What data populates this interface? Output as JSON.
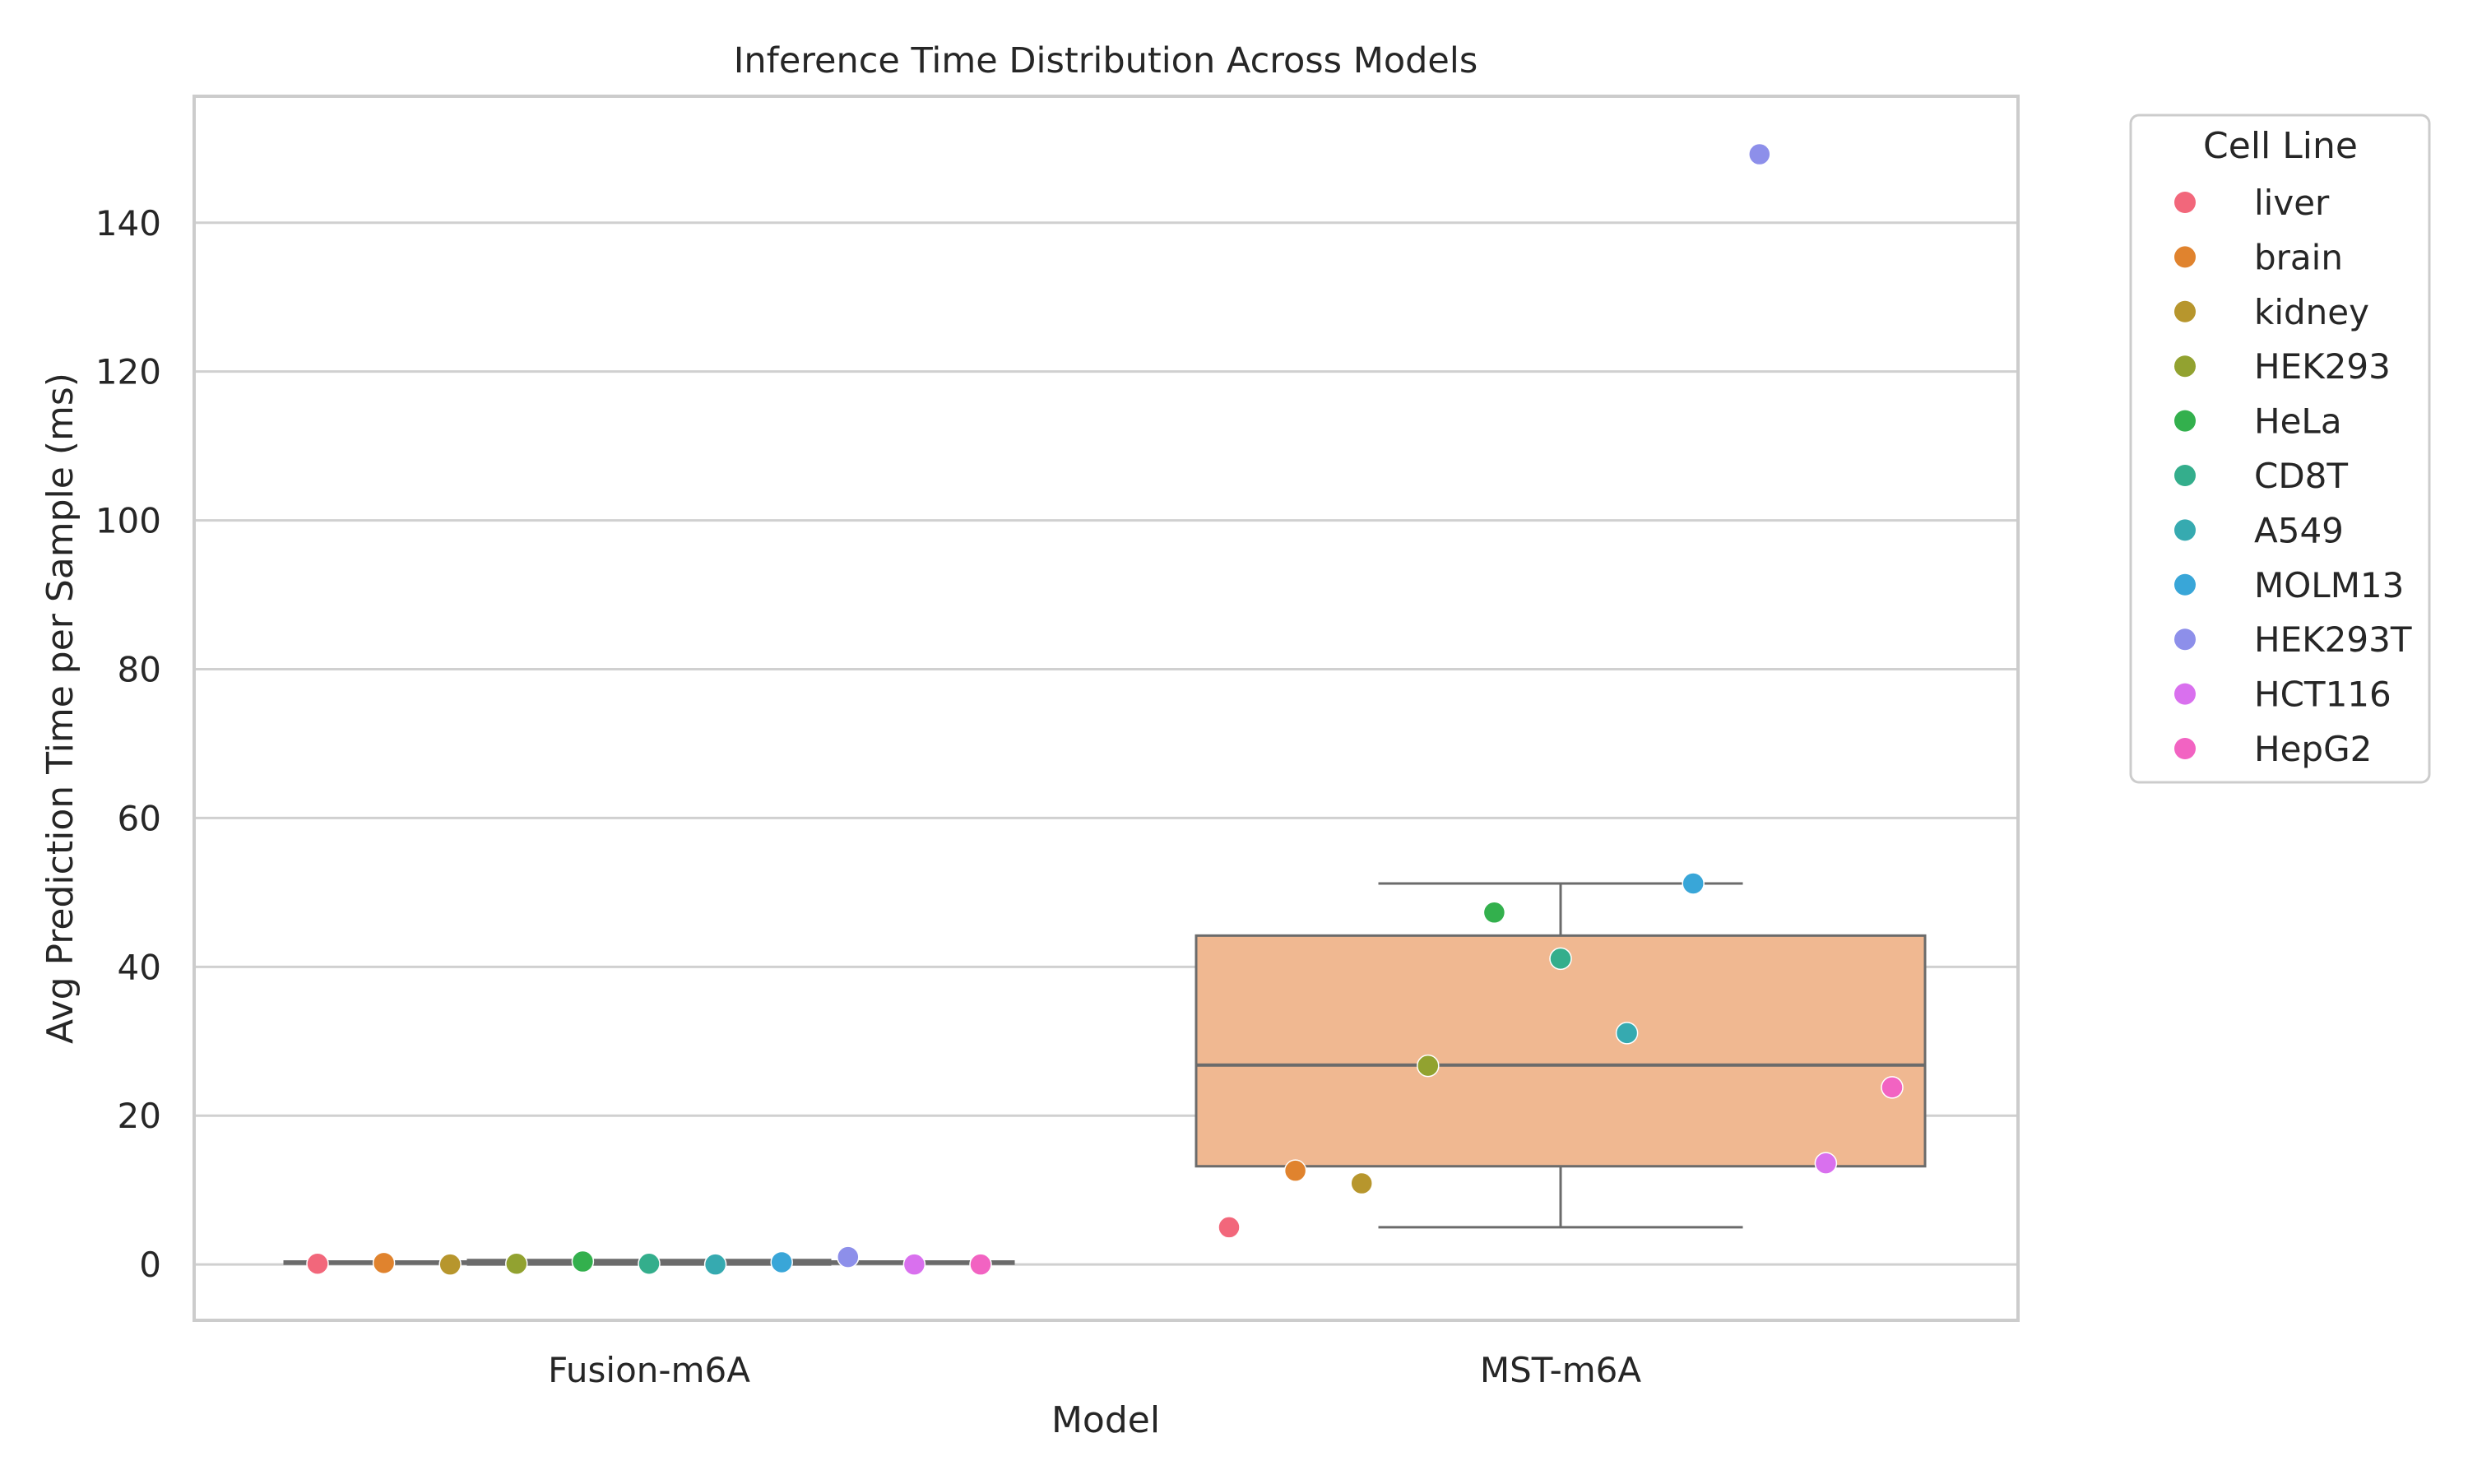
{
  "chart_data": {
    "type": "box",
    "title": "Inference Time Distribution Across Models",
    "xlabel": "Model",
    "ylabel": "Avg Prediction Time per Sample (ms)",
    "ylim": [
      -7.5,
      157
    ],
    "yticks": [
      0,
      20,
      40,
      60,
      80,
      100,
      120,
      140
    ],
    "categories": [
      "Fusion-m6A",
      "MST-m6A"
    ],
    "grid": "horizontal",
    "legend": {
      "title": "Cell Line",
      "position": "outside top-right"
    },
    "colors": {
      "box_fills": [
        "#c7d9ec",
        "#f0b891"
      ],
      "box_edge": "#6b6b6b",
      "grid": "#d0d0d0",
      "frame": "#cccccc"
    },
    "boxes": [
      {
        "category": "Fusion-m6A",
        "whisker_low": 0.0,
        "q1": 0.1,
        "median": 0.2,
        "q3": 0.4,
        "whisker_high": 0.6
      },
      {
        "category": "MST-m6A",
        "whisker_low": 5.0,
        "q1": 13.2,
        "median": 26.8,
        "q3": 44.2,
        "whisker_high": 51.2
      }
    ],
    "series": [
      {
        "name": "liver",
        "color": "#f2677b",
        "values": [
          0.1,
          5.0
        ]
      },
      {
        "name": "brain",
        "color": "#e0832e",
        "values": [
          0.2,
          12.6
        ]
      },
      {
        "name": "kidney",
        "color": "#b7962d",
        "values": [
          0.0,
          10.9
        ]
      },
      {
        "name": "HEK293",
        "color": "#92a230",
        "values": [
          0.1,
          26.7
        ]
      },
      {
        "name": "HeLa",
        "color": "#33b04d",
        "values": [
          0.4,
          47.3
        ]
      },
      {
        "name": "CD8T",
        "color": "#34ae8c",
        "values": [
          0.1,
          41.1
        ]
      },
      {
        "name": "A549",
        "color": "#36aab0",
        "values": [
          0.0,
          31.1
        ]
      },
      {
        "name": "MOLM13",
        "color": "#39a6d8",
        "values": [
          0.3,
          51.2
        ]
      },
      {
        "name": "HEK293T",
        "color": "#8d8fea",
        "values": [
          1.0,
          149.2
        ]
      },
      {
        "name": "HCT116",
        "color": "#d970ee",
        "values": [
          0.0,
          13.6
        ]
      },
      {
        "name": "HepG2",
        "color": "#f263c2",
        "values": [
          0.0,
          23.8
        ]
      }
    ]
  }
}
